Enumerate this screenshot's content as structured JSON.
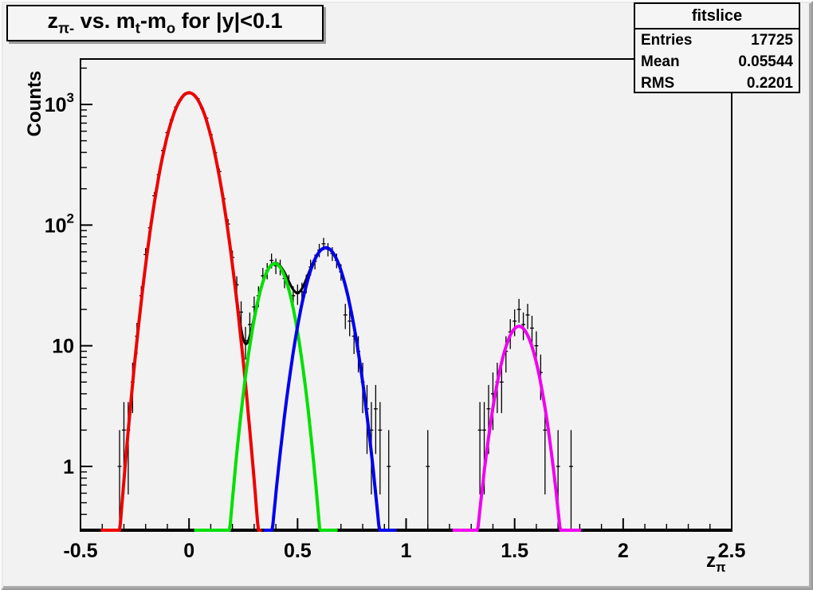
{
  "title": {
    "text": "z_π- vs. m_t-m_o for |y|<0.1",
    "segments": [
      {
        "t": "z"
      },
      {
        "t": "π-",
        "sub": true
      },
      {
        "t": " vs. m"
      },
      {
        "t": "t",
        "sub": true
      },
      {
        "t": "-m"
      },
      {
        "t": "o",
        "sub": true
      },
      {
        "t": " for |y|<0.1"
      }
    ]
  },
  "stats": {
    "title": "fitslice",
    "entries_label": "Entries",
    "entries_value": "17725",
    "mean_label": "Mean",
    "mean_value": "0.05544",
    "rms_label": "RMS",
    "rms_value": "0.2201"
  },
  "chart_data": {
    "type": "scatter",
    "subtype": "histogram_with_gaussian_fits",
    "title": "z_π- vs. m_t-m_o for |y|<0.1",
    "xlabel": "z_π",
    "ylabel": "Counts",
    "xlabel_segments": [
      {
        "t": "z"
      },
      {
        "t": "π",
        "sub": true
      }
    ],
    "background": "#f3f2f2",
    "grid": false,
    "legend": false,
    "x_axis": {
      "min": -0.5,
      "max": 2.5,
      "major_ticks": [
        -0.5,
        0,
        0.5,
        1,
        1.5,
        2,
        2.5
      ],
      "tick_labels": [
        "-0.5",
        "0",
        "0.5",
        "1",
        "1.5",
        "2",
        "2.5"
      ],
      "minor_step": 0.1
    },
    "y_axis": {
      "scale": "log",
      "min": 0.296,
      "max": 2380,
      "major_ticks": [
        1,
        10,
        100,
        1000
      ],
      "tick_labels": [
        {
          "value": 1,
          "base": "1",
          "exp": ""
        },
        {
          "value": 10,
          "base": "10",
          "exp": ""
        },
        {
          "value": 100,
          "base": "10",
          "exp": "2"
        },
        {
          "value": 1000,
          "base": "10",
          "exp": "3"
        }
      ]
    },
    "bin_width": 0.02,
    "error_model": "sqrt",
    "marker_color": "#000000",
    "points": [
      [
        -0.32,
        1
      ],
      [
        -0.3,
        2
      ],
      [
        -0.28,
        2
      ],
      [
        -0.26,
        5
      ],
      [
        -0.24,
        12
      ],
      [
        -0.22,
        26
      ],
      [
        -0.2,
        57
      ],
      [
        -0.18,
        95
      ],
      [
        -0.16,
        175
      ],
      [
        -0.14,
        262
      ],
      [
        -0.12,
        415
      ],
      [
        -0.1,
        584
      ],
      [
        -0.08,
        745
      ],
      [
        -0.06,
        950
      ],
      [
        -0.04,
        1090
      ],
      [
        -0.02,
        1220
      ],
      [
        0.0,
        1245
      ],
      [
        0.02,
        1210
      ],
      [
        0.04,
        1115
      ],
      [
        0.06,
        930
      ],
      [
        0.08,
        770
      ],
      [
        0.1,
        562
      ],
      [
        0.12,
        398
      ],
      [
        0.14,
        278
      ],
      [
        0.16,
        165
      ],
      [
        0.18,
        102
      ],
      [
        0.2,
        54
      ],
      [
        0.22,
        32
      ],
      [
        0.24,
        19
      ],
      [
        0.26,
        11
      ],
      [
        0.28,
        15
      ],
      [
        0.3,
        21
      ],
      [
        0.32,
        26
      ],
      [
        0.34,
        38
      ],
      [
        0.36,
        42
      ],
      [
        0.38,
        51
      ],
      [
        0.4,
        46
      ],
      [
        0.42,
        45
      ],
      [
        0.44,
        36
      ],
      [
        0.46,
        33
      ],
      [
        0.48,
        26
      ],
      [
        0.5,
        27
      ],
      [
        0.52,
        28
      ],
      [
        0.54,
        33
      ],
      [
        0.56,
        45
      ],
      [
        0.58,
        50
      ],
      [
        0.6,
        62
      ],
      [
        0.62,
        70
      ],
      [
        0.64,
        63
      ],
      [
        0.66,
        58
      ],
      [
        0.68,
        51
      ],
      [
        0.7,
        41
      ],
      [
        0.72,
        18
      ],
      [
        0.74,
        16
      ],
      [
        0.76,
        12
      ],
      [
        0.78,
        9
      ],
      [
        0.8,
        5
      ],
      [
        0.82,
        3
      ],
      [
        0.84,
        2
      ],
      [
        0.86,
        3
      ],
      [
        0.88,
        2
      ],
      [
        0.92,
        1
      ],
      [
        1.1,
        1
      ],
      [
        1.34,
        2
      ],
      [
        1.36,
        2
      ],
      [
        1.38,
        3
      ],
      [
        1.4,
        4
      ],
      [
        1.42,
        5
      ],
      [
        1.44,
        5
      ],
      [
        1.46,
        9
      ],
      [
        1.48,
        13
      ],
      [
        1.5,
        16
      ],
      [
        1.52,
        20
      ],
      [
        1.54,
        15
      ],
      [
        1.56,
        18
      ],
      [
        1.58,
        14
      ],
      [
        1.6,
        10
      ],
      [
        1.62,
        6
      ],
      [
        1.64,
        2
      ],
      [
        1.7,
        1
      ],
      [
        1.76,
        1
      ]
    ],
    "fits": [
      {
        "name": "total-fit",
        "color": "#000000",
        "width": 3,
        "sum_of": [
          "red",
          "green",
          "blue",
          "magenta"
        ],
        "range": [
          0.2,
          0.9
        ]
      },
      {
        "name": "red",
        "color": "#ee0000",
        "width": 4,
        "amplitude": 1250,
        "mean": 0.0,
        "sigma": 0.078,
        "range": [
          -0.4,
          0.33
        ]
      },
      {
        "name": "green",
        "color": "#00e000",
        "width": 4,
        "amplitude": 48,
        "mean": 0.395,
        "sigma": 0.065,
        "range": [
          0.03,
          0.68
        ]
      },
      {
        "name": "blue",
        "color": "#0000ee",
        "width": 4,
        "amplitude": 65,
        "mean": 0.63,
        "sigma": 0.075,
        "range": [
          0.35,
          0.95
        ]
      },
      {
        "name": "magenta",
        "color": "#f000f0",
        "width": 4,
        "amplitude": 14.5,
        "mean": 1.52,
        "sigma": 0.068,
        "range": [
          1.22,
          1.8
        ]
      }
    ]
  }
}
